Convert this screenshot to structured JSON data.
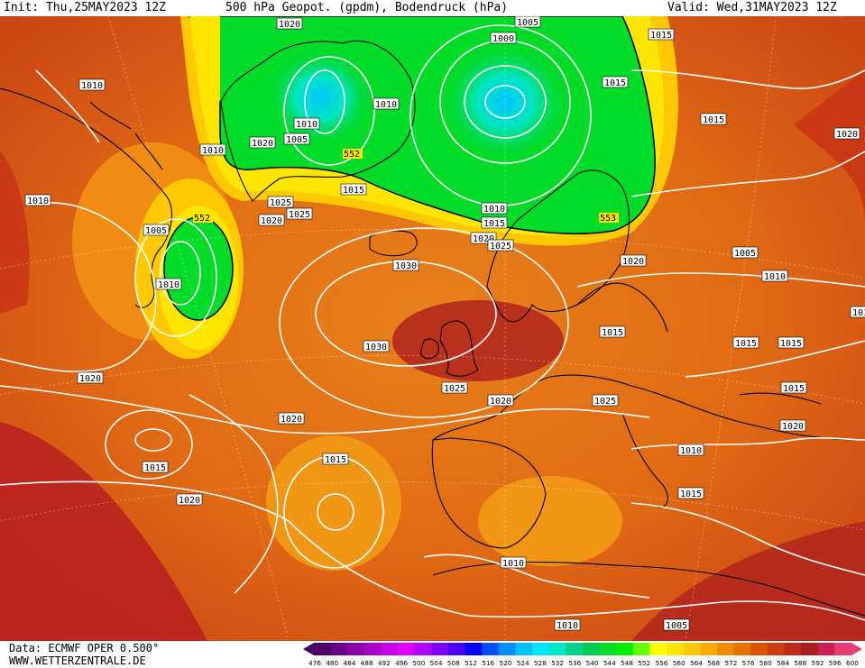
{
  "header": {
    "init": "Init: Thu,25MAY2023 12Z",
    "title": "500 hPa Geopot. (gpdm), Bodendruck (hPa)",
    "valid": "Valid: Wed,31MAY2023 12Z"
  },
  "footer": {
    "data_source": "Data: ECMWF OPER 0.500°",
    "website": "WWW.WETTERZENTRALE.DE"
  },
  "legend": {
    "ticks": [
      "476",
      "480",
      "484",
      "488",
      "492",
      "496",
      "500",
      "504",
      "508",
      "512",
      "516",
      "520",
      "524",
      "528",
      "532",
      "536",
      "540",
      "544",
      "548",
      "552",
      "556",
      "560",
      "564",
      "568",
      "572",
      "576",
      "580",
      "584",
      "588",
      "592",
      "596",
      "600"
    ],
    "colors": [
      "#4b0066",
      "#6a0088",
      "#8a00a8",
      "#a800c8",
      "#c800e6",
      "#e000ff",
      "#b000ff",
      "#8000ff",
      "#4b00ff",
      "#0000ff",
      "#0050ff",
      "#0090ff",
      "#00c0ff",
      "#00e6ff",
      "#00e6c8",
      "#00d28c",
      "#00c850",
      "#00dc28",
      "#00f000",
      "#64ff00",
      "#ffff00",
      "#ffe600",
      "#ffc800",
      "#ffaa00",
      "#f08c00",
      "#e66e00",
      "#dc5000",
      "#d23c14",
      "#be2814",
      "#aa1e1e",
      "#c81e50",
      "#e63c78"
    ]
  },
  "map": {
    "geopot_labels": [
      "552",
      "552",
      "553"
    ],
    "pressure_labels": [
      "1020",
      "1005",
      "1000",
      "1015",
      "1010",
      "1010",
      "1015",
      "1015",
      "1020",
      "1010",
      "1005",
      "1010",
      "1010",
      "1020",
      "1005",
      "1010",
      "1015",
      "1025",
      "1020",
      "1025",
      "1010",
      "1015",
      "1020",
      "1025",
      "1020",
      "1030",
      "1005",
      "1010",
      "1030",
      "1025",
      "1020",
      "1025",
      "1015",
      "1015",
      "1015",
      "1020",
      "1015",
      "1020",
      "1020",
      "1015",
      "1015",
      "1010",
      "1020",
      "1015",
      "1010",
      "1010",
      "1005",
      "1010"
    ]
  }
}
